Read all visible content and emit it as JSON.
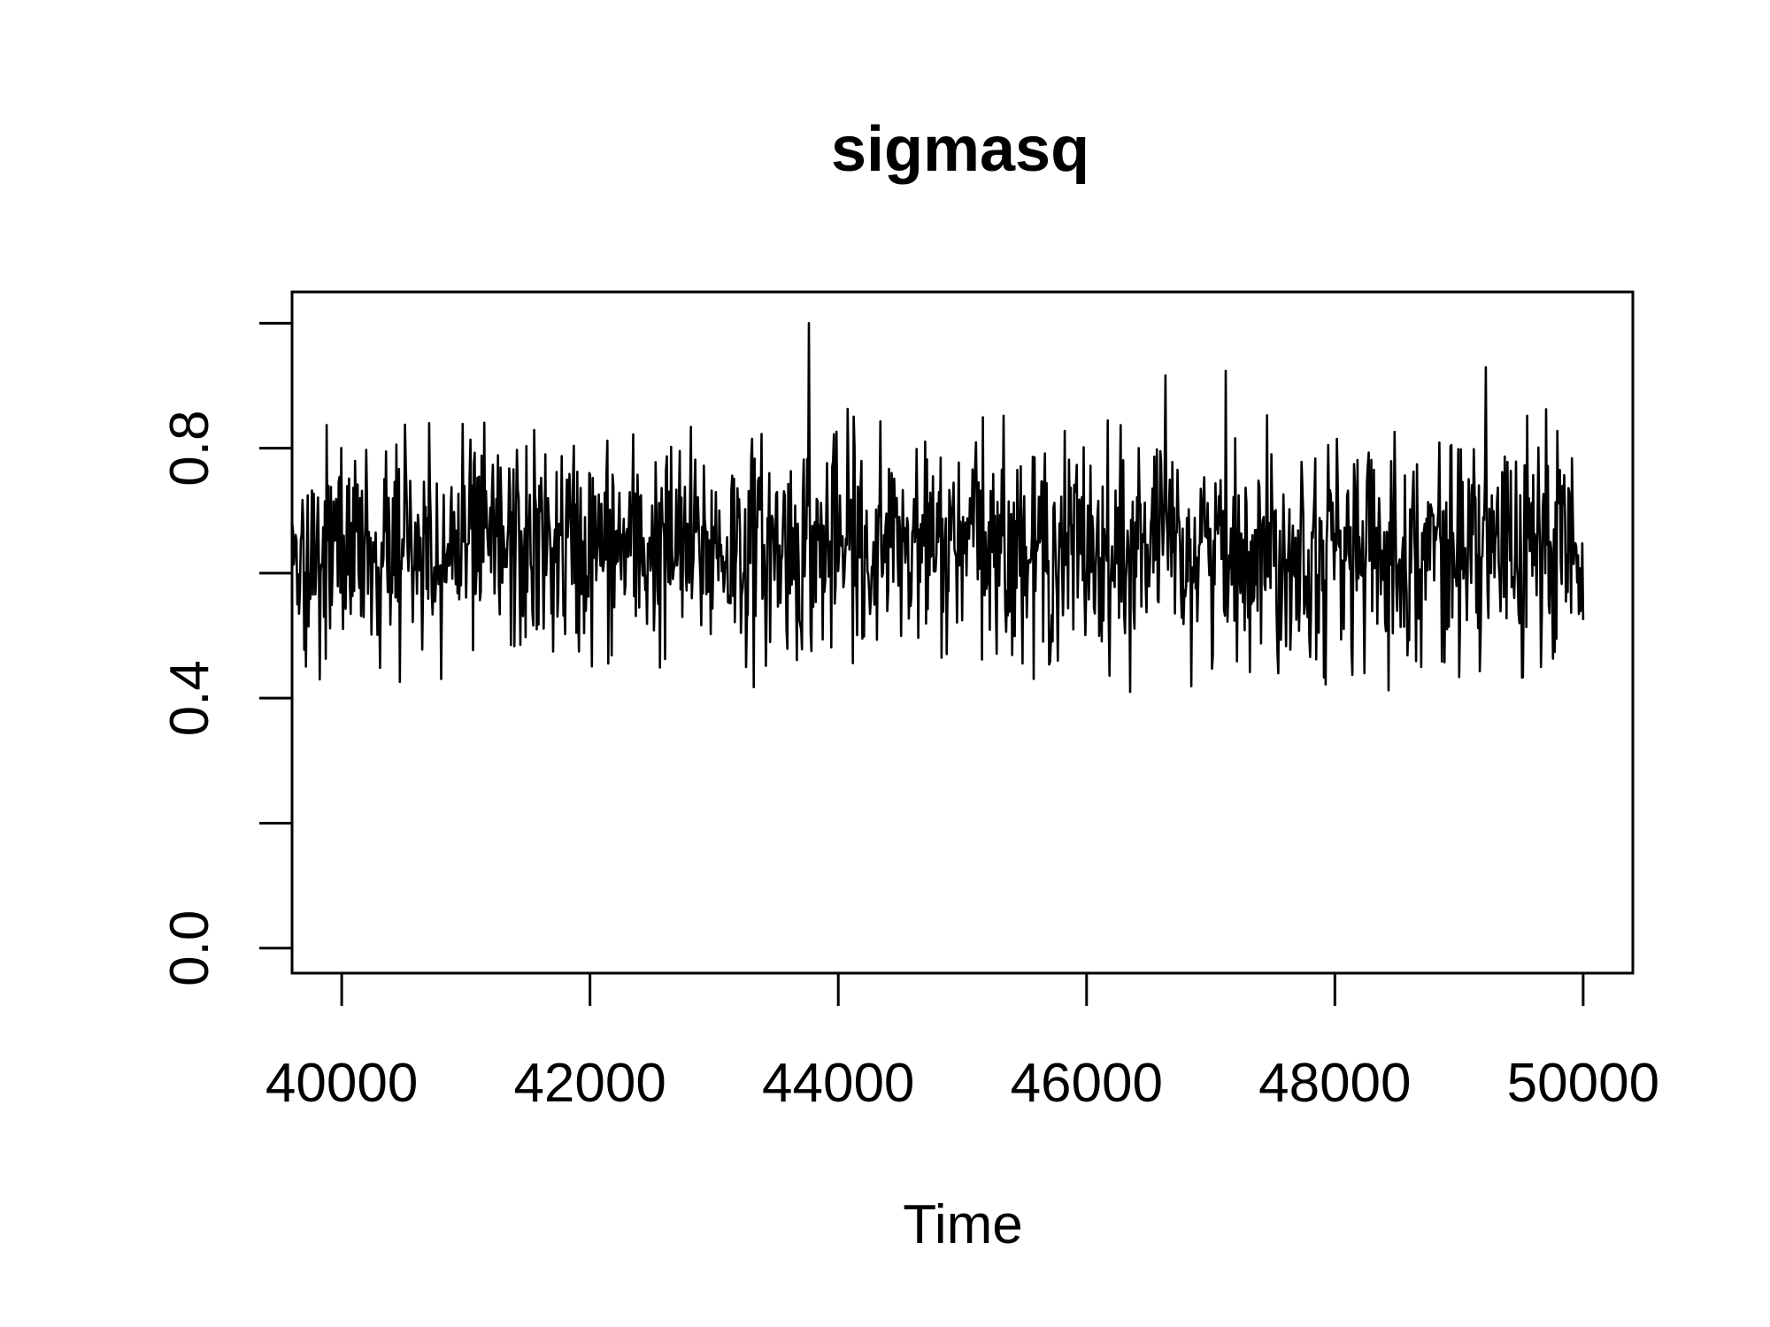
{
  "chart_data": {
    "type": "line",
    "title": "sigmasq",
    "xlabel": "Time",
    "ylabel": "",
    "xlim": [
      39600,
      50400
    ],
    "ylim": [
      -0.04,
      1.05
    ],
    "xticks": [
      40000,
      42000,
      44000,
      46000,
      48000,
      50000
    ],
    "xtick_labels": [
      "40000",
      "42000",
      "44000",
      "46000",
      "48000",
      "50000"
    ],
    "yticks": [
      0.0,
      0.2,
      0.4,
      0.6,
      0.8,
      1.0
    ],
    "ytick_labels": [
      "0.0",
      "",
      "0.4",
      "",
      "0.8",
      ""
    ],
    "grid": false,
    "legend": "none",
    "series": [
      {
        "x_start": 39601,
        "x_end": 50000,
        "mean": 0.64,
        "sd": 0.085,
        "min": 0.41,
        "max": 1.0,
        "color": "#000000"
      }
    ]
  }
}
